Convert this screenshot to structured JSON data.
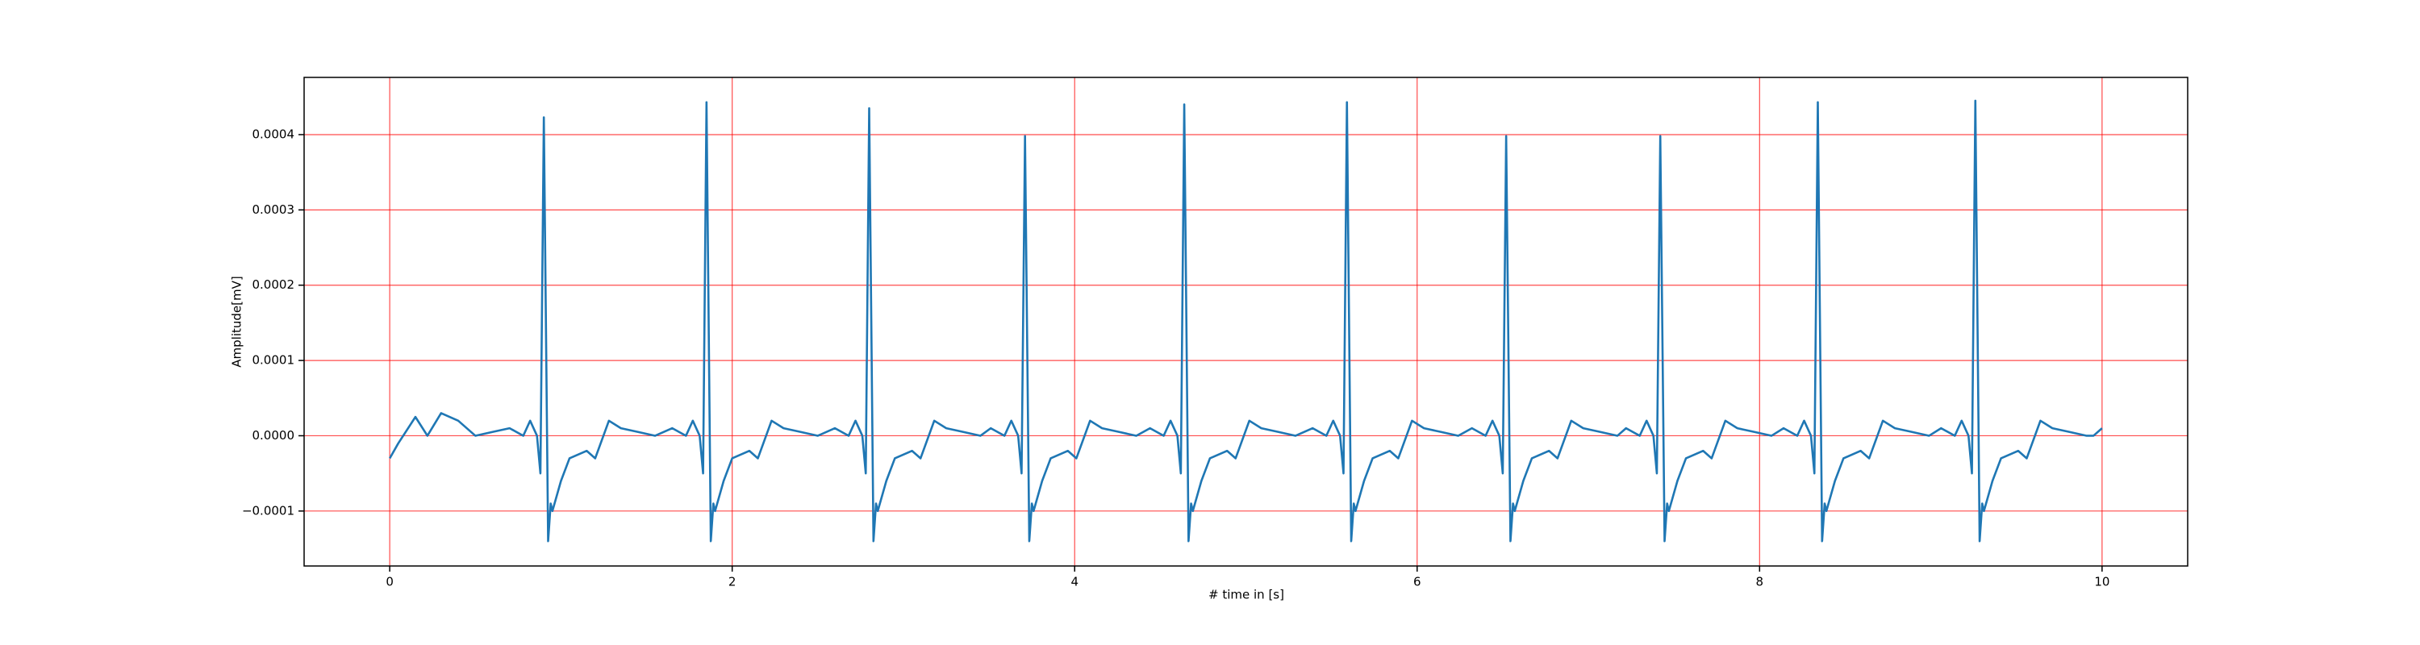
{
  "chart_data": {
    "type": "line",
    "xlabel": "# time in [s]",
    "ylabel": "Amplitude[mV]",
    "xlim": [
      -0.5,
      10.5
    ],
    "ylim": [
      -0.000173,
      0.000476
    ],
    "xticks": [
      0,
      2,
      4,
      6,
      8,
      10
    ],
    "yticks": [
      {
        "value": -0.0001,
        "label": "−0.0001"
      },
      {
        "value": 0,
        "label": "0.0000"
      },
      {
        "value": 0.0001,
        "label": "0.0001"
      },
      {
        "value": 0.0002,
        "label": "0.0002"
      },
      {
        "value": 0.0003,
        "label": "0.0003"
      },
      {
        "value": 0.0004,
        "label": "0.0004"
      }
    ],
    "grid": true,
    "grid_color": "#ff0000",
    "series": [
      {
        "color": "#1f77b4",
        "x": [
          0,
          0.05,
          0.15,
          0.22,
          0.3,
          0.4,
          0.5,
          0.6,
          0.7,
          0.78,
          0.82,
          0.86,
          0.88,
          0.9,
          0.925,
          0.94,
          0.95,
          1.0,
          1.05,
          1.15,
          1.2,
          1.28,
          1.35,
          1.45,
          1.55,
          1.65,
          1.73,
          1.77,
          1.81,
          1.83,
          1.85,
          1.875,
          1.89,
          1.9,
          1.95,
          2.0,
          2.1,
          2.15,
          2.23,
          2.3,
          2.4,
          2.5,
          2.6,
          2.68,
          2.72,
          2.76,
          2.78,
          2.8,
          2.825,
          2.84,
          2.85,
          2.9,
          2.95,
          3.05,
          3.1,
          3.18,
          3.25,
          3.35,
          3.45,
          3.51,
          3.59,
          3.63,
          3.67,
          3.69,
          3.71,
          3.735,
          3.75,
          3.76,
          3.81,
          3.86,
          3.96,
          4.01,
          4.09,
          4.16,
          4.26,
          4.36,
          4.44,
          4.52,
          4.56,
          4.6,
          4.62,
          4.64,
          4.665,
          4.68,
          4.69,
          4.74,
          4.79,
          4.89,
          4.94,
          5.02,
          5.09,
          5.19,
          5.29,
          5.39,
          5.47,
          5.51,
          5.55,
          5.57,
          5.59,
          5.615,
          5.63,
          5.64,
          5.69,
          5.74,
          5.84,
          5.89,
          5.97,
          6.04,
          6.14,
          6.24,
          6.32,
          6.4,
          6.44,
          6.48,
          6.5,
          6.52,
          6.545,
          6.56,
          6.57,
          6.62,
          6.67,
          6.77,
          6.82,
          6.9,
          6.97,
          7.07,
          7.17,
          7.22,
          7.3,
          7.34,
          7.38,
          7.4,
          7.42,
          7.445,
          7.46,
          7.47,
          7.52,
          7.57,
          7.67,
          7.72,
          7.8,
          7.87,
          7.97,
          8.07,
          8.14,
          8.22,
          8.26,
          8.3,
          8.32,
          8.34,
          8.365,
          8.38,
          8.39,
          8.44,
          8.49,
          8.59,
          8.64,
          8.72,
          8.79,
          8.89,
          8.99,
          9.06,
          9.14,
          9.18,
          9.22,
          9.24,
          9.26,
          9.285,
          9.3,
          9.31,
          9.36,
          9.41,
          9.51,
          9.56,
          9.64,
          9.71,
          9.81,
          9.91,
          9.95,
          10.0
        ],
        "values": [
          -3e-05,
          -1e-05,
          2.5e-05,
          0.0,
          3e-05,
          2e-05,
          0.0,
          5e-06,
          1e-05,
          0.0,
          2e-05,
          0.0,
          -5e-05,
          0.000423,
          -0.00014,
          -9e-05,
          -0.0001,
          -6e-05,
          -3e-05,
          -2e-05,
          -3e-05,
          2e-05,
          1e-05,
          5e-06,
          0.0,
          1e-05,
          0.0,
          2e-05,
          0.0,
          -5e-05,
          0.000443,
          -0.00014,
          -9e-05,
          -0.0001,
          -6e-05,
          -3e-05,
          -2e-05,
          -3e-05,
          2e-05,
          1e-05,
          5e-06,
          0.0,
          1e-05,
          0.0,
          2e-05,
          0.0,
          -5e-05,
          0.000435,
          -0.00014,
          -9e-05,
          -0.0001,
          -6e-05,
          -3e-05,
          -2e-05,
          -3e-05,
          2e-05,
          1e-05,
          5e-06,
          0.0,
          1e-05,
          0.0,
          2e-05,
          0.0,
          -5e-05,
          0.000398,
          -0.00014,
          -9e-05,
          -0.0001,
          -6e-05,
          -3e-05,
          -2e-05,
          -3e-05,
          2e-05,
          1e-05,
          5e-06,
          0.0,
          1e-05,
          0.0,
          2e-05,
          0.0,
          -5e-05,
          0.00044,
          -0.00014,
          -9e-05,
          -0.0001,
          -6e-05,
          -3e-05,
          -2e-05,
          -3e-05,
          2e-05,
          1e-05,
          5e-06,
          0.0,
          1e-05,
          0.0,
          2e-05,
          0.0,
          -5e-05,
          0.000443,
          -0.00014,
          -9e-05,
          -0.0001,
          -6e-05,
          -3e-05,
          -2e-05,
          -3e-05,
          2e-05,
          1e-05,
          5e-06,
          0.0,
          1e-05,
          0.0,
          2e-05,
          0.0,
          -5e-05,
          0.000398,
          -0.00014,
          -9e-05,
          -0.0001,
          -6e-05,
          -3e-05,
          -2e-05,
          -3e-05,
          2e-05,
          1e-05,
          5e-06,
          0.0,
          1e-05,
          0.0,
          2e-05,
          0.0,
          -5e-05,
          0.000398,
          -0.00014,
          -9e-05,
          -0.0001,
          -6e-05,
          -3e-05,
          -2e-05,
          -3e-05,
          2e-05,
          1e-05,
          5e-06,
          0.0,
          1e-05,
          0.0,
          2e-05,
          0.0,
          -5e-05,
          0.000443,
          -0.00014,
          -9e-05,
          -0.0001,
          -6e-05,
          -3e-05,
          -2e-05,
          -3e-05,
          2e-05,
          1e-05,
          5e-06,
          0.0,
          1e-05,
          0.0,
          2e-05,
          0.0,
          -5e-05,
          0.000445,
          -0.00014,
          -9e-05,
          -0.0001,
          -6e-05,
          -3e-05,
          -2e-05,
          -3e-05,
          2e-05,
          1e-05,
          5e-06,
          0.0,
          0.0,
          1e-05
        ]
      }
    ]
  }
}
